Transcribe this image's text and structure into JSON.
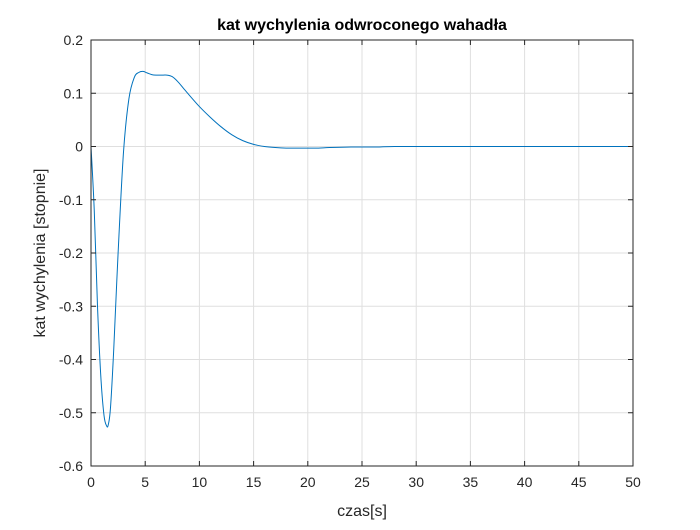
{
  "chart_data": {
    "type": "line",
    "title": "kat wychylenia odwroconego wahadła",
    "xlabel": "czas[s]",
    "ylabel": "kat wychylenia [stopnie]",
    "xlim": [
      0,
      50
    ],
    "ylim": [
      -0.6,
      0.2
    ],
    "x_ticks": [
      0,
      5,
      10,
      15,
      20,
      25,
      30,
      35,
      40,
      45,
      50
    ],
    "y_ticks": [
      0.2,
      0.1,
      0,
      -0.1,
      -0.2,
      -0.3,
      -0.4,
      -0.5,
      -0.6
    ],
    "x_tick_labels": [
      "0",
      "5",
      "10",
      "15",
      "20",
      "25",
      "30",
      "35",
      "40",
      "45",
      "50"
    ],
    "y_tick_labels": [
      "0.2",
      "0.1",
      "0",
      "-0.1",
      "-0.2",
      "-0.3",
      "-0.4",
      "-0.5",
      "-0.6"
    ],
    "grid": true,
    "series": [
      {
        "color": "#0072bd",
        "x": [
          0,
          0.3,
          0.6,
          0.9,
          1.2,
          1.45,
          1.6,
          1.8,
          2.1,
          2.5,
          3.0,
          3.5,
          4.0,
          4.4,
          4.8,
          5.2,
          5.6,
          6.0,
          6.5,
          7.0,
          7.5,
          8.0,
          8.5,
          9.0,
          10.0,
          11.0,
          12.0,
          13.0,
          14.0,
          15.0,
          16.0,
          17.0,
          18.0,
          19.0,
          20.0,
          21.0,
          22.0,
          24.0,
          26.0,
          28.0,
          30.0,
          35.0,
          40.0,
          45.0,
          50.0
        ],
        "y": [
          0,
          -0.12,
          -0.3,
          -0.43,
          -0.505,
          -0.525,
          -0.522,
          -0.49,
          -0.38,
          -0.2,
          -0.01,
          0.09,
          0.13,
          0.139,
          0.141,
          0.138,
          0.135,
          0.134,
          0.134,
          0.134,
          0.131,
          0.122,
          0.11,
          0.098,
          0.075,
          0.055,
          0.037,
          0.022,
          0.011,
          0.004,
          0.0,
          -0.002,
          -0.003,
          -0.003,
          -0.003,
          -0.003,
          -0.002,
          -0.001,
          -0.001,
          0.0,
          0.0,
          0.0,
          0.0,
          0.0,
          0.0
        ]
      }
    ]
  }
}
